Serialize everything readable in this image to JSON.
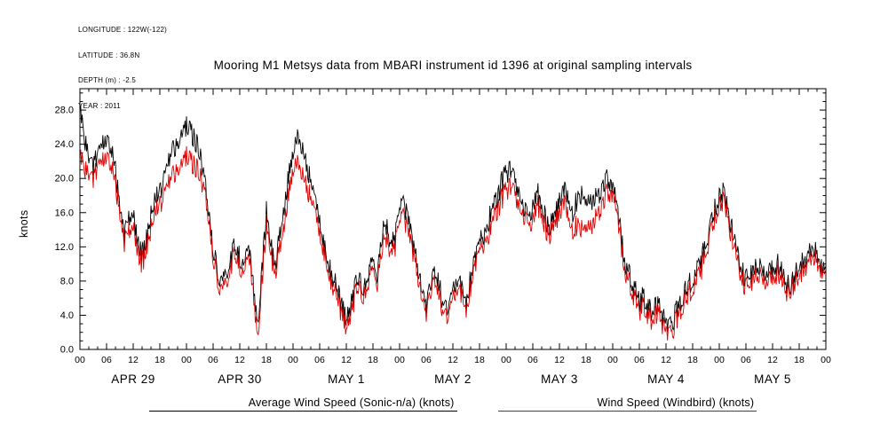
{
  "meta": {
    "lines": [
      "LONGITUDE : 122W(-122)",
      "LATITUDE : 36.8N",
      "DEPTH (m) : -2.5",
      "YEAR : 2011"
    ]
  },
  "title": "Mooring M1 Metsys data from MBARI instrument id 1396 at original sampling intervals",
  "colors": {
    "background": "#ffffff",
    "axis": "#000000"
  },
  "chart_data": {
    "type": "line",
    "title": "Mooring M1 Metsys data from MBARI instrument id 1396 at original sampling intervals",
    "xlabel": "",
    "ylabel": "knots",
    "ylim": [
      0,
      30.5
    ],
    "y_tick_step": 4,
    "y_minor_step": 1,
    "y_tick_labels": [
      "0.0",
      "4.0",
      "8.0",
      "12.0",
      "16.0",
      "20.0",
      "24.0",
      "28.0"
    ],
    "x_hours_start": 0,
    "x_hours_end": 168,
    "x_step_hours": 1,
    "x_major_tick_hours": 6,
    "x_minor_tick_hours": 2,
    "x_hour_labels": [
      "00",
      "06",
      "12",
      "18"
    ],
    "day_labels": [
      "APR 29",
      "APR 30",
      "MAY 1",
      "MAY 2",
      "MAY 3",
      "MAY 4",
      "MAY 5"
    ],
    "grid": false,
    "legend_position": "bottom",
    "noise": {
      "amplitude": 1.35,
      "subsamples_per_hour": 6,
      "seed": 20110429
    },
    "series": [
      {
        "name": "Average Wind Speed (Sonic-n/a) (knots)",
        "color": "#000000",
        "values": [
          28.5,
          25,
          22.5,
          21.5,
          22.5,
          24,
          24.5,
          23.5,
          21,
          16,
          13.5,
          15.5,
          16,
          12.5,
          11,
          13,
          15.5,
          17.5,
          18.5,
          20,
          22,
          23.5,
          24.5,
          25.5,
          26,
          25.5,
          24.5,
          23,
          20,
          16,
          12,
          9,
          8,
          8.5,
          10.5,
          12.5,
          11,
          9,
          13,
          8,
          3,
          9,
          16.5,
          12,
          10,
          13,
          17,
          20.5,
          23,
          24.5,
          23.5,
          22,
          19.5,
          17,
          14.5,
          12,
          10,
          8.5,
          7,
          5,
          3.5,
          5,
          7.5,
          8,
          7,
          8.5,
          10.5,
          9,
          13.5,
          14.5,
          12.5,
          13,
          16.5,
          17,
          15,
          12.5,
          9.5,
          7,
          5.5,
          7.5,
          9,
          7,
          5.5,
          4.5,
          6.5,
          8,
          7,
          5,
          8.5,
          11,
          12.5,
          13.5,
          15,
          16.5,
          18,
          19.5,
          20.5,
          21,
          19.5,
          18,
          16.5,
          15.5,
          17,
          18.5,
          17,
          15,
          14.5,
          16,
          17.5,
          18.5,
          17.5,
          16,
          17.5,
          18,
          16.5,
          17,
          17.5,
          18,
          19.5,
          20,
          19.5,
          17,
          13,
          10,
          8.5,
          7,
          5.5,
          6.5,
          5,
          4,
          5.5,
          4,
          3,
          2.5,
          4,
          5.5,
          6.5,
          7.5,
          8,
          9.5,
          10.5,
          12.5,
          14.5,
          16.5,
          18,
          18.5,
          16.5,
          13.5,
          11,
          9.5,
          8,
          8.5,
          9.5,
          10,
          9,
          8.5,
          9.5,
          10,
          9,
          8,
          7,
          8.5,
          9.5,
          10.5,
          11,
          12,
          11.5,
          10,
          9.5
        ]
      },
      {
        "name": "Wind Speed (Windbird) (knots)",
        "color": "#dd0000",
        "values": [
          23,
          21.5,
          20.5,
          20,
          21,
          22,
          22.5,
          21.5,
          19.5,
          15,
          12.5,
          14,
          14.5,
          11.5,
          10,
          12,
          14,
          16,
          17,
          18,
          19.5,
          20.5,
          21.5,
          22,
          22.5,
          22,
          21.5,
          20.5,
          18.5,
          15,
          11,
          8,
          7,
          7.5,
          9.5,
          11.5,
          10,
          8,
          12,
          7,
          1.5,
          7.5,
          15,
          11,
          9,
          11.5,
          15,
          18.5,
          21,
          21.5,
          20.5,
          19.5,
          17.5,
          15.5,
          13,
          11,
          9,
          7.5,
          6,
          4,
          2.5,
          4,
          6.5,
          7,
          6,
          7.5,
          9.5,
          8,
          12,
          13,
          11.5,
          12,
          15,
          15.5,
          13.5,
          11.5,
          8.5,
          6,
          4.5,
          6.5,
          8,
          6,
          4.5,
          3.5,
          5.5,
          7,
          6,
          4,
          7.5,
          10,
          11.5,
          12.5,
          13.5,
          15,
          16.5,
          17.5,
          18.5,
          19,
          18,
          16.5,
          15.5,
          14.5,
          15.5,
          17,
          16,
          14,
          13.5,
          15,
          16,
          17,
          15.5,
          14,
          14.5,
          14,
          13.5,
          14,
          15,
          16,
          17.5,
          18.5,
          18.5,
          16,
          12,
          9,
          7.5,
          6,
          4.5,
          5.5,
          4,
          3,
          4.5,
          3,
          2,
          1.5,
          3,
          4.5,
          5.5,
          6.5,
          7,
          8.5,
          9.5,
          11.5,
          13.5,
          15.5,
          17,
          17.5,
          15.5,
          12.5,
          10,
          8.5,
          7,
          7.5,
          8.5,
          9,
          8,
          7.5,
          8.5,
          9,
          8,
          7,
          6.5,
          7.5,
          8.5,
          9.5,
          10,
          11,
          10.5,
          9.5,
          9
        ]
      }
    ]
  }
}
